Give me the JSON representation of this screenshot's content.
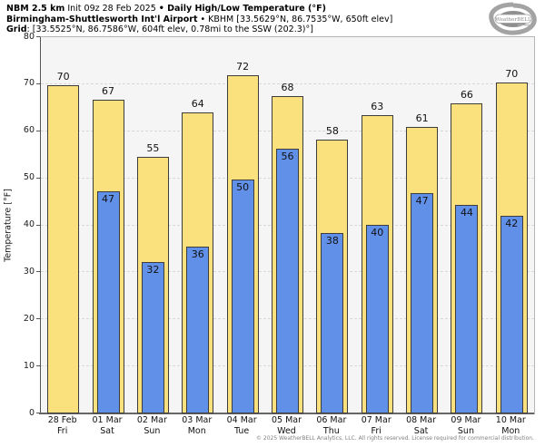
{
  "header": {
    "line1_bold1": "NBM 2.5 km",
    "line1_regular": " Init 09z 28 Feb 2025 ",
    "line1_bold2": "• Daily High/Low Temperature (°F)",
    "line2_bold": "Birmingham-Shuttlesworth Int'l Airport",
    "line2_regular": " • KBHM [33.5629°N, 86.7535°W, 650ft elev]",
    "line3_bold": "Grid",
    "line3_regular": ": [33.5525°N, 86.7586°W, 604ft elev, 0.78mi to the SSW (202.3)°]",
    "logo_brand": "WeatherBELL"
  },
  "chart_data": {
    "type": "bar",
    "title": "Daily High/Low Temperature (°F)",
    "ylabel": "Temperature [°F]",
    "ylim": [
      0,
      80
    ],
    "yticks": [
      0,
      10,
      20,
      30,
      40,
      50,
      60,
      70,
      80
    ],
    "grid": "horizontal-dashed",
    "legend_position": "none",
    "categories": [
      {
        "date": "28 Feb",
        "day": "Fri"
      },
      {
        "date": "01 Mar",
        "day": "Sat"
      },
      {
        "date": "02 Mar",
        "day": "Sun"
      },
      {
        "date": "03 Mar",
        "day": "Mon"
      },
      {
        "date": "04 Mar",
        "day": "Tue"
      },
      {
        "date": "05 Mar",
        "day": "Wed"
      },
      {
        "date": "06 Mar",
        "day": "Thu"
      },
      {
        "date": "07 Mar",
        "day": "Fri"
      },
      {
        "date": "08 Mar",
        "day": "Sat"
      },
      {
        "date": "09 Mar",
        "day": "Sun"
      },
      {
        "date": "10 Mar",
        "day": "Mon"
      }
    ],
    "series": [
      {
        "name": "Daily High",
        "color": "#fae17d",
        "values": [
          70,
          67,
          55,
          64,
          72,
          68,
          58,
          63,
          61,
          66,
          70
        ],
        "values_plotted": [
          69.7,
          66.7,
          54.6,
          64.0,
          71.9,
          67.5,
          58.3,
          63.4,
          60.9,
          66.0,
          70.4
        ]
      },
      {
        "name": "Daily Low",
        "color": "#6190e8",
        "values": [
          null,
          47,
          32,
          36,
          50,
          56,
          38,
          40,
          47,
          44,
          42
        ],
        "values_plotted": [
          null,
          47.3,
          32.2,
          35.5,
          49.7,
          56.2,
          38.3,
          40.1,
          46.9,
          44.3,
          42.1
        ]
      }
    ]
  },
  "footer": {
    "copyright": "© 2025 WeatherBELL Analytics, LLC. All rights reserved. License required for commercial distribution."
  }
}
